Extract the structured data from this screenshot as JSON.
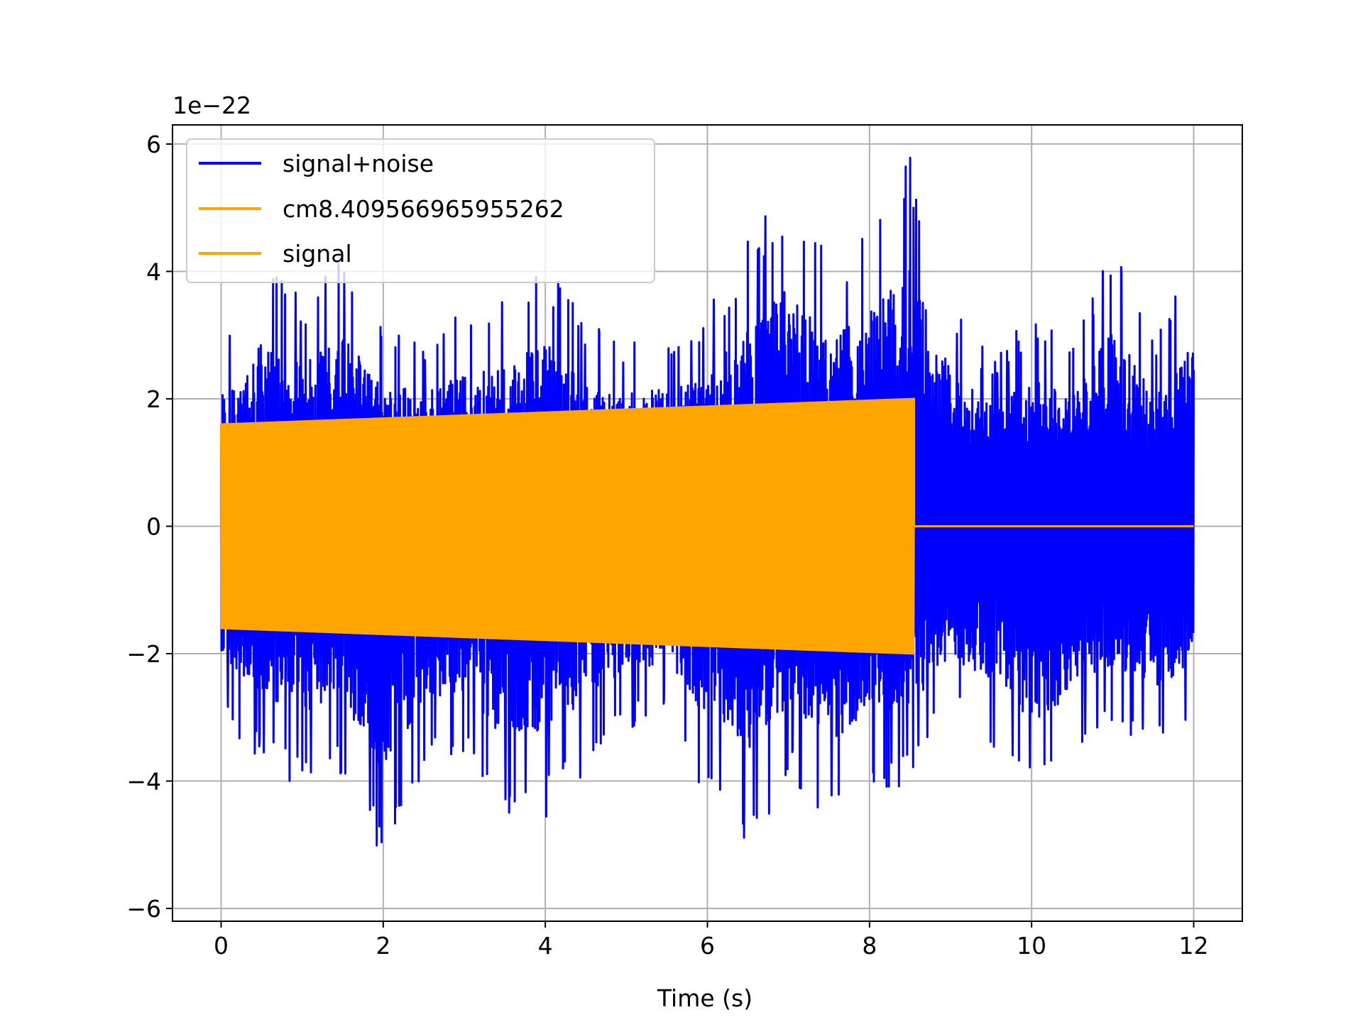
{
  "chart_data": {
    "type": "line",
    "title": "",
    "xlabel": "Time (s)",
    "ylabel": "",
    "y_offset_text": "1e−22",
    "y_scale_factor": 1e-22,
    "xlim": [
      -0.6,
      12.6
    ],
    "ylim": [
      -6.2,
      6.3
    ],
    "x_ticks": [
      0,
      2,
      4,
      6,
      8,
      10,
      12
    ],
    "x_tick_labels": [
      "0",
      "2",
      "4",
      "6",
      "8",
      "10",
      "12"
    ],
    "y_ticks": [
      -6,
      -4,
      -2,
      0,
      2,
      4,
      6
    ],
    "y_tick_labels": [
      "−6",
      "−4",
      "−2",
      "0",
      "2",
      "4",
      "6"
    ],
    "grid": true,
    "legend_position": "top-left",
    "series": [
      {
        "name": "signal+noise",
        "color": "#0000ff",
        "x_range": [
          0,
          12
        ],
        "envelope": {
          "x": [
            0,
            0.5,
            1,
            1.5,
            2,
            2.5,
            3,
            3.5,
            4,
            4.5,
            5,
            5.5,
            6,
            6.5,
            7,
            7.5,
            8,
            8.5,
            9,
            9.5,
            10,
            10.5,
            11,
            11.5,
            12
          ],
          "upper": [
            2.9,
            4.1,
            3.6,
            4.3,
            3.3,
            3.0,
            3.4,
            3.6,
            4.2,
            3.2,
            3.0,
            3.1,
            3.4,
            4.5,
            5.4,
            4.2,
            4.8,
            5.8,
            3.5,
            2.7,
            3.3,
            2.9,
            4.5,
            3.0,
            4.2
          ],
          "lower": [
            -3.0,
            -3.8,
            -4.2,
            -3.9,
            -5.5,
            -3.9,
            -3.7,
            -4.8,
            -4.6,
            -3.9,
            -3.2,
            -3.1,
            -4.4,
            -5.1,
            -4.0,
            -4.8,
            -4.3,
            -4.0,
            -3.0,
            -3.4,
            -4.4,
            -3.8,
            -3.1,
            -3.6,
            -3.2
          ]
        }
      },
      {
        "name": "cm8.409566965955262",
        "color": "#ffa500"
      },
      {
        "name": "signal",
        "color": "#ffa500",
        "x_range": [
          0,
          12
        ],
        "amplitude": {
          "x": [
            0,
            8.55,
            8.56,
            12
          ],
          "value": [
            1.6,
            2.0,
            0,
            0
          ]
        }
      }
    ]
  }
}
